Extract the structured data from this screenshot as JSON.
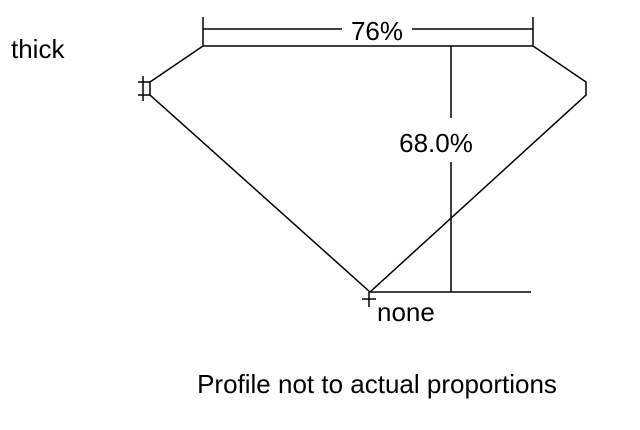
{
  "labels": {
    "girdle": "thick",
    "table": "76%",
    "depth": "68.0%",
    "culet": "none",
    "note": "Profile not to actual proportions"
  },
  "colors": {
    "line": "#000000",
    "background": "#ffffff"
  }
}
